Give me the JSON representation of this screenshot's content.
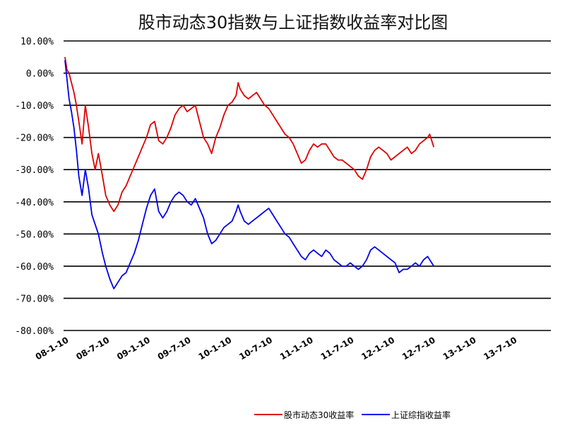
{
  "chart_data": {
    "type": "line",
    "title": "股市动态30指数与上证指数收益率对比图",
    "xlabel": "",
    "ylabel": "",
    "ylim": [
      -0.8,
      0.1
    ],
    "yticks": [
      0.1,
      0.0,
      -0.1,
      -0.2,
      -0.3,
      -0.4,
      -0.5,
      -0.6,
      -0.7,
      -0.8
    ],
    "ytick_labels": [
      "10.00%",
      "0.00%",
      "-10.00%",
      "-20.00%",
      "-30.00%",
      "-40.00%",
      "-50.00%",
      "-60.00%",
      "-70.00%",
      "-80.00%"
    ],
    "x_ticks": [
      "08-1-10",
      "08-7-10",
      "09-1-10",
      "09-7-10",
      "10-1-10",
      "10-7-10",
      "11-1-10",
      "11-7-10",
      "12-1-10",
      "12-7-10",
      "13-1-10",
      "13-7-10"
    ],
    "grid": true,
    "legend": "bottom",
    "series": [
      {
        "name": "股市动态30收益率",
        "color": "#dd0000",
        "values": [
          [
            0.0,
            0.05
          ],
          [
            0.05,
            0.01
          ],
          [
            0.1,
            0.0
          ],
          [
            0.16,
            -0.03
          ],
          [
            0.22,
            -0.06
          ],
          [
            0.28,
            -0.1
          ],
          [
            0.34,
            -0.15
          ],
          [
            0.42,
            -0.22
          ],
          [
            0.5,
            -0.1
          ],
          [
            0.58,
            -0.17
          ],
          [
            0.66,
            -0.25
          ],
          [
            0.74,
            -0.3
          ],
          [
            0.82,
            -0.25
          ],
          [
            0.92,
            -0.32
          ],
          [
            1.0,
            -0.38
          ],
          [
            1.1,
            -0.41
          ],
          [
            1.2,
            -0.43
          ],
          [
            1.3,
            -0.41
          ],
          [
            1.4,
            -0.37
          ],
          [
            1.5,
            -0.35
          ],
          [
            1.6,
            -0.32
          ],
          [
            1.7,
            -0.29
          ],
          [
            1.8,
            -0.26
          ],
          [
            1.9,
            -0.23
          ],
          [
            2.0,
            -0.2
          ],
          [
            2.1,
            -0.16
          ],
          [
            2.2,
            -0.15
          ],
          [
            2.3,
            -0.21
          ],
          [
            2.4,
            -0.22
          ],
          [
            2.5,
            -0.2
          ],
          [
            2.6,
            -0.17
          ],
          [
            2.7,
            -0.13
          ],
          [
            2.8,
            -0.11
          ],
          [
            2.9,
            -0.1
          ],
          [
            3.0,
            -0.12
          ],
          [
            3.1,
            -0.11
          ],
          [
            3.2,
            -0.1
          ],
          [
            3.3,
            -0.15
          ],
          [
            3.4,
            -0.2
          ],
          [
            3.5,
            -0.22
          ],
          [
            3.6,
            -0.25
          ],
          [
            3.7,
            -0.2
          ],
          [
            3.8,
            -0.17
          ],
          [
            3.9,
            -0.13
          ],
          [
            4.0,
            -0.1
          ],
          [
            4.1,
            -0.09
          ],
          [
            4.2,
            -0.07
          ],
          [
            4.25,
            -0.03
          ],
          [
            4.3,
            -0.05
          ],
          [
            4.4,
            -0.07
          ],
          [
            4.5,
            -0.08
          ],
          [
            4.6,
            -0.07
          ],
          [
            4.7,
            -0.06
          ],
          [
            4.8,
            -0.08
          ],
          [
            4.9,
            -0.1
          ],
          [
            5.0,
            -0.11
          ],
          [
            5.1,
            -0.13
          ],
          [
            5.2,
            -0.15
          ],
          [
            5.3,
            -0.17
          ],
          [
            5.4,
            -0.19
          ],
          [
            5.5,
            -0.2
          ],
          [
            5.6,
            -0.22
          ],
          [
            5.7,
            -0.25
          ],
          [
            5.8,
            -0.28
          ],
          [
            5.9,
            -0.27
          ],
          [
            6.0,
            -0.24
          ],
          [
            6.1,
            -0.22
          ],
          [
            6.2,
            -0.23
          ],
          [
            6.3,
            -0.22
          ],
          [
            6.4,
            -0.22
          ],
          [
            6.5,
            -0.24
          ],
          [
            6.6,
            -0.26
          ],
          [
            6.7,
            -0.27
          ],
          [
            6.8,
            -0.27
          ],
          [
            6.9,
            -0.28
          ],
          [
            7.0,
            -0.29
          ],
          [
            7.1,
            -0.3
          ],
          [
            7.2,
            -0.32
          ],
          [
            7.3,
            -0.33
          ],
          [
            7.4,
            -0.3
          ],
          [
            7.5,
            -0.26
          ],
          [
            7.6,
            -0.24
          ],
          [
            7.7,
            -0.23
          ],
          [
            7.8,
            -0.24
          ],
          [
            7.9,
            -0.25
          ],
          [
            8.0,
            -0.27
          ],
          [
            8.1,
            -0.26
          ],
          [
            8.2,
            -0.25
          ],
          [
            8.3,
            -0.24
          ],
          [
            8.4,
            -0.23
          ],
          [
            8.5,
            -0.25
          ],
          [
            8.6,
            -0.24
          ],
          [
            8.7,
            -0.22
          ],
          [
            8.8,
            -0.21
          ],
          [
            8.9,
            -0.2
          ],
          [
            8.95,
            -0.19
          ],
          [
            9.0,
            -0.21
          ],
          [
            9.05,
            -0.23
          ]
        ]
      },
      {
        "name": "上证综指收益率",
        "color": "#0000ee",
        "values": [
          [
            0.0,
            0.04
          ],
          [
            0.05,
            -0.02
          ],
          [
            0.1,
            -0.08
          ],
          [
            0.16,
            -0.12
          ],
          [
            0.22,
            -0.17
          ],
          [
            0.28,
            -0.24
          ],
          [
            0.34,
            -0.32
          ],
          [
            0.42,
            -0.38
          ],
          [
            0.5,
            -0.3
          ],
          [
            0.58,
            -0.36
          ],
          [
            0.66,
            -0.44
          ],
          [
            0.74,
            -0.47
          ],
          [
            0.82,
            -0.5
          ],
          [
            0.92,
            -0.56
          ],
          [
            1.0,
            -0.6
          ],
          [
            1.1,
            -0.64
          ],
          [
            1.2,
            -0.67
          ],
          [
            1.3,
            -0.65
          ],
          [
            1.4,
            -0.63
          ],
          [
            1.5,
            -0.62
          ],
          [
            1.6,
            -0.59
          ],
          [
            1.7,
            -0.56
          ],
          [
            1.8,
            -0.52
          ],
          [
            1.9,
            -0.47
          ],
          [
            2.0,
            -0.42
          ],
          [
            2.1,
            -0.38
          ],
          [
            2.2,
            -0.36
          ],
          [
            2.3,
            -0.43
          ],
          [
            2.4,
            -0.45
          ],
          [
            2.5,
            -0.43
          ],
          [
            2.6,
            -0.4
          ],
          [
            2.7,
            -0.38
          ],
          [
            2.8,
            -0.37
          ],
          [
            2.9,
            -0.38
          ],
          [
            3.0,
            -0.4
          ],
          [
            3.1,
            -0.41
          ],
          [
            3.2,
            -0.39
          ],
          [
            3.3,
            -0.42
          ],
          [
            3.4,
            -0.45
          ],
          [
            3.5,
            -0.5
          ],
          [
            3.6,
            -0.53
          ],
          [
            3.7,
            -0.52
          ],
          [
            3.8,
            -0.5
          ],
          [
            3.9,
            -0.48
          ],
          [
            4.0,
            -0.47
          ],
          [
            4.1,
            -0.46
          ],
          [
            4.2,
            -0.43
          ],
          [
            4.25,
            -0.41
          ],
          [
            4.3,
            -0.43
          ],
          [
            4.4,
            -0.46
          ],
          [
            4.5,
            -0.47
          ],
          [
            4.6,
            -0.46
          ],
          [
            4.7,
            -0.45
          ],
          [
            4.8,
            -0.44
          ],
          [
            4.9,
            -0.43
          ],
          [
            5.0,
            -0.42
          ],
          [
            5.1,
            -0.44
          ],
          [
            5.2,
            -0.46
          ],
          [
            5.3,
            -0.48
          ],
          [
            5.4,
            -0.5
          ],
          [
            5.5,
            -0.51
          ],
          [
            5.6,
            -0.53
          ],
          [
            5.7,
            -0.55
          ],
          [
            5.8,
            -0.57
          ],
          [
            5.9,
            -0.58
          ],
          [
            6.0,
            -0.56
          ],
          [
            6.1,
            -0.55
          ],
          [
            6.2,
            -0.56
          ],
          [
            6.3,
            -0.57
          ],
          [
            6.4,
            -0.55
          ],
          [
            6.5,
            -0.56
          ],
          [
            6.6,
            -0.58
          ],
          [
            6.7,
            -0.59
          ],
          [
            6.8,
            -0.6
          ],
          [
            6.9,
            -0.6
          ],
          [
            7.0,
            -0.59
          ],
          [
            7.1,
            -0.6
          ],
          [
            7.2,
            -0.61
          ],
          [
            7.3,
            -0.6
          ],
          [
            7.4,
            -0.58
          ],
          [
            7.5,
            -0.55
          ],
          [
            7.6,
            -0.54
          ],
          [
            7.7,
            -0.55
          ],
          [
            7.8,
            -0.56
          ],
          [
            7.9,
            -0.57
          ],
          [
            8.0,
            -0.58
          ],
          [
            8.1,
            -0.59
          ],
          [
            8.2,
            -0.62
          ],
          [
            8.3,
            -0.61
          ],
          [
            8.4,
            -0.61
          ],
          [
            8.5,
            -0.6
          ],
          [
            8.6,
            -0.59
          ],
          [
            8.7,
            -0.6
          ],
          [
            8.8,
            -0.58
          ],
          [
            8.9,
            -0.57
          ],
          [
            8.95,
            -0.58
          ],
          [
            9.0,
            -0.59
          ],
          [
            9.05,
            -0.6
          ]
        ]
      }
    ]
  }
}
